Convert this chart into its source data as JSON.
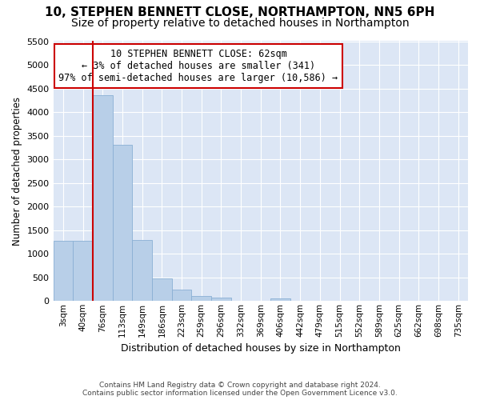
{
  "title": "10, STEPHEN BENNETT CLOSE, NORTHAMPTON, NN5 6PH",
  "subtitle": "Size of property relative to detached houses in Northampton",
  "xlabel": "Distribution of detached houses by size in Northampton",
  "ylabel": "Number of detached properties",
  "footer_line1": "Contains HM Land Registry data © Crown copyright and database right 2024.",
  "footer_line2": "Contains public sector information licensed under the Open Government Licence v3.0.",
  "annotation_line1": "10 STEPHEN BENNETT CLOSE: 62sqm",
  "annotation_line2": "← 3% of detached houses are smaller (341)",
  "annotation_line3": "97% of semi-detached houses are larger (10,586) →",
  "bar_color": "#b8cfe8",
  "bar_edge_color": "#8aafd4",
  "vline_color": "#cc0000",
  "bg_color": "#dce6f5",
  "categories": [
    "3sqm",
    "40sqm",
    "76sqm",
    "113sqm",
    "149sqm",
    "186sqm",
    "223sqm",
    "259sqm",
    "296sqm",
    "332sqm",
    "369sqm",
    "406sqm",
    "442sqm",
    "479sqm",
    "515sqm",
    "552sqm",
    "589sqm",
    "625sqm",
    "662sqm",
    "698sqm",
    "735sqm"
  ],
  "bar_values": [
    1280,
    1280,
    4350,
    3300,
    1300,
    480,
    240,
    100,
    70,
    0,
    0,
    55,
    0,
    0,
    0,
    0,
    0,
    0,
    0,
    0,
    0
  ],
  "ylim": [
    0,
    5500
  ],
  "yticks": [
    0,
    500,
    1000,
    1500,
    2000,
    2500,
    3000,
    3500,
    4000,
    4500,
    5000,
    5500
  ],
  "vline_x": 2.0,
  "grid_color": "#ffffff",
  "title_fontsize": 11,
  "subtitle_fontsize": 10,
  "annot_fontsize": 8.5
}
